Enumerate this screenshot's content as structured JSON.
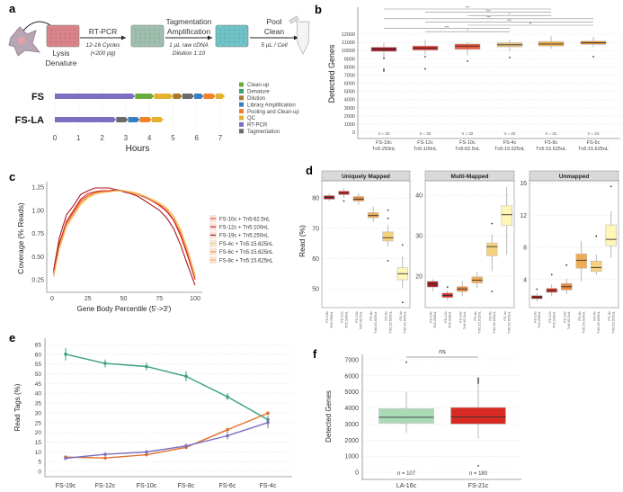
{
  "panel_labels": [
    "a",
    "b",
    "c",
    "d",
    "e",
    "f"
  ],
  "chart_data": [
    {
      "panel": "a",
      "type": "bar",
      "workflow": {
        "steps": [
          {
            "label": [
              "Lysis",
              "Denature"
            ],
            "color": "#d9838a"
          },
          {
            "label": [],
            "color": "#9fbfae"
          },
          {
            "label": [],
            "color": "#6fc3c6"
          }
        ],
        "arrows": [
          {
            "title": [
              "RT-PCR"
            ],
            "sub": [
              "12-16 Cycles",
              "(<200 pg)"
            ]
          },
          {
            "title": [
              "Tagmentation",
              "Amplification"
            ],
            "sub": [
              "1 µL raw cDNA",
              "Dilution 1:10"
            ]
          },
          {
            "title": [
              "Pool",
              "Clean"
            ],
            "sub": [
              "5 µL / Cell"
            ]
          }
        ]
      },
      "xlabel": "Hours",
      "xlim": [
        0,
        7
      ],
      "xticks": [
        "0",
        "1",
        "2",
        "3",
        "4",
        "5",
        "6",
        "7"
      ],
      "categories": [
        "FS",
        "FS-LA"
      ],
      "legend": [
        {
          "name": "Clean-up",
          "color": "#6aaa3a"
        },
        {
          "name": "Denature",
          "color": "#3aa07a"
        },
        {
          "name": "Dilution",
          "color": "#a67c2a"
        },
        {
          "name": "Library Amplification",
          "color": "#3a7fc0"
        },
        {
          "name": "Pooling and Clean-up",
          "color": "#f0822a"
        },
        {
          "name": "QC",
          "color": "#e3b330"
        },
        {
          "name": "RT-PCR",
          "color": "#7b6fc0"
        },
        {
          "name": "Tagmentation",
          "color": "#6a6a6a"
        }
      ],
      "legend_position": "right",
      "segments": {
        "FS": [
          [
            "RT-PCR",
            0,
            3.4
          ],
          [
            "Clean-up",
            3.4,
            4.2
          ],
          [
            "QC",
            4.2,
            5.0
          ],
          [
            "Dilution",
            5.0,
            5.4
          ],
          [
            "Tagmentation",
            5.4,
            5.9
          ],
          [
            "Library Amplification",
            5.9,
            6.3
          ],
          [
            "Pooling and Clean-up",
            6.3,
            6.8
          ],
          [
            "QC",
            6.8,
            7.2
          ]
        ],
        "FS-LA": [
          [
            "RT-PCR",
            0,
            2.6
          ],
          [
            "Tagmentation",
            2.6,
            3.1
          ],
          [
            "Library Amplification",
            3.1,
            3.6
          ],
          [
            "Pooling and Clean-up",
            3.6,
            4.1
          ],
          [
            "QC",
            4.1,
            4.6
          ]
        ]
      }
    },
    {
      "panel": "b",
      "type": "box",
      "ylabel": "Detected Genes",
      "ylim": [
        0,
        12000
      ],
      "yticks": [
        "0",
        "1000",
        "2000",
        "3000",
        "4000",
        "5000",
        "6000",
        "7000",
        "8000",
        "9000",
        "10000",
        "11000",
        "12000"
      ],
      "categories": [
        [
          "FS-19c",
          "Tn5:250nL"
        ],
        [
          "FS-12c",
          "Tn5:100nL"
        ],
        [
          "FS-10c",
          "Tn5:62.5nL"
        ],
        [
          "FS-4c",
          "Tn5:15.625nL"
        ],
        [
          "FS-8c",
          "Tn5:15.625nL"
        ],
        [
          "FS-6c",
          "Tn5:15.625nL"
        ]
      ],
      "n_labels": [
        "n = 32",
        "n = 32",
        "n = 32",
        "n = 32",
        "n = 31",
        "n = 24"
      ],
      "colors": [
        "#a8191f",
        "#d52a22",
        "#e8553a",
        "#e8c47a",
        "#f0b04d",
        "#e8903a"
      ],
      "boxes": [
        {
          "q1": 9900,
          "median": 10150,
          "q3": 10400,
          "lo": 9100,
          "hi": 10900,
          "outliers": [
            9050,
            7700,
            7500
          ]
        },
        {
          "q1": 10050,
          "median": 10300,
          "q3": 10550,
          "lo": 9500,
          "hi": 11300,
          "outliers": [
            9250,
            7750
          ]
        },
        {
          "q1": 10150,
          "median": 10550,
          "q3": 10800,
          "lo": 9400,
          "hi": 11000,
          "outliers": [
            8700
          ]
        },
        {
          "q1": 10450,
          "median": 10700,
          "q3": 10950,
          "lo": 9900,
          "hi": 11300,
          "outliers": [
            9150
          ]
        },
        {
          "q1": 10550,
          "median": 10800,
          "q3": 11100,
          "lo": 10200,
          "hi": 11800,
          "outliers": []
        },
        {
          "q1": 10750,
          "median": 10950,
          "q3": 11150,
          "lo": 10400,
          "hi": 11700,
          "outliers": [
            9250
          ]
        }
      ],
      "significance": [
        {
          "from": 0,
          "to": 4,
          "label": "***"
        },
        {
          "from": 1,
          "to": 4,
          "label": "***"
        },
        {
          "from": 2,
          "to": 4,
          "label": "*"
        },
        {
          "from": 0,
          "to": 5,
          "label": "***"
        },
        {
          "from": 1,
          "to": 5,
          "label": "***"
        },
        {
          "from": 2,
          "to": 5,
          "label": "**"
        },
        {
          "from": 0,
          "to": 3,
          "label": "***"
        },
        {
          "from": 1,
          "to": 3,
          "label": "*"
        }
      ],
      "grid": true
    },
    {
      "panel": "c",
      "type": "line",
      "xlabel": "Gene Body Percentile (5'->3')",
      "ylabel": "Coverage (% Reads)",
      "xlim": [
        0,
        100
      ],
      "ylim": [
        0.2,
        1.27
      ],
      "xticks": [
        "0",
        "25",
        "50",
        "75",
        "100"
      ],
      "yticks": [
        "0.25",
        "0.50",
        "0.75",
        "1.00",
        "1.25"
      ],
      "legend_position": "right",
      "series": [
        {
          "name": "FS-10c + Tn5:62.5nL",
          "color": "#e8553a",
          "x": [
            1,
            5,
            10,
            15,
            20,
            25,
            30,
            35,
            40,
            45,
            50,
            55,
            60,
            65,
            70,
            75,
            80,
            85,
            90,
            95,
            100
          ],
          "values": [
            0.32,
            0.62,
            0.86,
            0.98,
            1.1,
            1.16,
            1.19,
            1.2,
            1.21,
            1.22,
            1.21,
            1.19,
            1.17,
            1.14,
            1.1,
            1.06,
            1.0,
            0.9,
            0.74,
            0.52,
            0.26
          ]
        },
        {
          "name": "FS-12c + Tn5:100nL",
          "color": "#d52a22",
          "x": [
            1,
            5,
            10,
            15,
            20,
            25,
            30,
            35,
            40,
            45,
            50,
            55,
            60,
            65,
            70,
            75,
            80,
            85,
            90,
            95,
            100
          ],
          "values": [
            0.33,
            0.64,
            0.88,
            1.0,
            1.12,
            1.18,
            1.2,
            1.21,
            1.21,
            1.22,
            1.21,
            1.19,
            1.17,
            1.14,
            1.1,
            1.05,
            0.99,
            0.89,
            0.72,
            0.5,
            0.25
          ]
        },
        {
          "name": "FS-19c + Tn5:250nL",
          "color": "#a8191f",
          "x": [
            1,
            5,
            10,
            15,
            20,
            25,
            30,
            35,
            40,
            45,
            50,
            55,
            60,
            65,
            70,
            75,
            80,
            85,
            90,
            95,
            100
          ],
          "values": [
            0.35,
            0.7,
            0.95,
            1.05,
            1.17,
            1.21,
            1.24,
            1.24,
            1.24,
            1.22,
            1.2,
            1.18,
            1.15,
            1.1,
            1.05,
            1.0,
            0.92,
            0.8,
            0.62,
            0.4,
            0.19
          ]
        },
        {
          "name": "FS-4c + Tn5:15.625nL",
          "color": "#f6d77a",
          "x": [
            1,
            5,
            10,
            15,
            20,
            25,
            30,
            35,
            40,
            45,
            50,
            55,
            60,
            65,
            70,
            75,
            80,
            85,
            90,
            95,
            100
          ],
          "values": [
            0.28,
            0.58,
            0.82,
            0.94,
            1.06,
            1.13,
            1.17,
            1.19,
            1.2,
            1.21,
            1.21,
            1.2,
            1.18,
            1.15,
            1.12,
            1.08,
            1.03,
            0.94,
            0.79,
            0.57,
            0.3
          ]
        },
        {
          "name": "FS-6c + Tn5:15.625nL",
          "color": "#f0a04a",
          "x": [
            1,
            5,
            10,
            15,
            20,
            25,
            30,
            35,
            40,
            45,
            50,
            55,
            60,
            65,
            70,
            75,
            80,
            85,
            90,
            95,
            100
          ],
          "values": [
            0.3,
            0.6,
            0.84,
            0.96,
            1.08,
            1.15,
            1.18,
            1.2,
            1.2,
            1.21,
            1.21,
            1.19,
            1.17,
            1.15,
            1.11,
            1.07,
            1.02,
            0.93,
            0.77,
            0.55,
            0.28
          ]
        },
        {
          "name": "FS-8c + Tn5:15.625nL",
          "color": "#f5b860",
          "x": [
            1,
            5,
            10,
            15,
            20,
            25,
            30,
            35,
            40,
            45,
            50,
            55,
            60,
            65,
            70,
            75,
            80,
            85,
            90,
            95,
            100
          ],
          "values": [
            0.29,
            0.59,
            0.83,
            0.95,
            1.07,
            1.14,
            1.18,
            1.19,
            1.2,
            1.21,
            1.21,
            1.2,
            1.18,
            1.15,
            1.11,
            1.07,
            1.02,
            0.93,
            0.78,
            0.56,
            0.29
          ]
        }
      ]
    },
    {
      "panel": "d",
      "type": "box",
      "ylabel": "Read (%)",
      "categories": [
        [
          "FS-19c",
          "Tn5:250nL"
        ],
        [
          "FS-12c",
          "Tn5:100nL"
        ],
        [
          "FS-10c",
          "Tn5:62.5nL"
        ],
        [
          "FS-8c",
          "Tn5:15.625nL"
        ],
        [
          "FS-6c",
          "Tn5:15.625nL"
        ],
        [
          "FS-4c",
          "Tn5:15.625nL"
        ]
      ],
      "colors": [
        "#a8191f",
        "#d52a22",
        "#eb8a3c",
        "#f0ac52",
        "#f7d27e",
        "#fff6b8"
      ],
      "facets": [
        {
          "title": "Uniquely Mapped",
          "ylim": [
            43.8,
            85.7
          ],
          "yticks": [
            50,
            60,
            70,
            80
          ],
          "boxes": [
            {
              "q1": 79.6,
              "median": 80.2,
              "q3": 80.8,
              "lo": 79,
              "hi": 81.5,
              "outliers": []
            },
            {
              "q1": 81.1,
              "median": 81.7,
              "q3": 82.3,
              "lo": 80,
              "hi": 83.2,
              "outliers": [
                79
              ]
            },
            {
              "q1": 79,
              "median": 79.6,
              "q3": 80.5,
              "lo": 77.8,
              "hi": 81.5,
              "outliers": []
            },
            {
              "q1": 73.5,
              "median": 74.2,
              "q3": 75.2,
              "lo": 72,
              "hi": 77.2,
              "outliers": []
            },
            {
              "q1": 65.8,
              "median": 66.9,
              "q3": 68.8,
              "lo": 64,
              "hi": 71,
              "outliers": [
                76,
                73.3,
                59.3
              ]
            },
            {
              "q1": 53,
              "median": 55,
              "q3": 57,
              "lo": 50.2,
              "hi": 60.8,
              "outliers": [
                64.5,
                45.5
              ]
            }
          ]
        },
        {
          "title": "Multi-Mapped",
          "ylim": [
            12.2,
            43.6
          ],
          "yticks": [
            20,
            30,
            40
          ],
          "boxes": [
            {
              "q1": 17.3,
              "median": 18,
              "q3": 18.7,
              "lo": 16.2,
              "hi": 19.2,
              "outliers": []
            },
            {
              "q1": 14.7,
              "median": 15.2,
              "q3": 15.8,
              "lo": 14,
              "hi": 16.5,
              "outliers": [
                17.3
              ]
            },
            {
              "q1": 16.2,
              "median": 16.8,
              "q3": 17.4,
              "lo": 15,
              "hi": 18.8,
              "outliers": []
            },
            {
              "q1": 18.3,
              "median": 19,
              "q3": 19.8,
              "lo": 17,
              "hi": 21,
              "outliers": []
            },
            {
              "q1": 25,
              "median": 27.3,
              "q3": 28.2,
              "lo": 21.2,
              "hi": 30.3,
              "outliers": [
                33,
                16.2
              ]
            },
            {
              "q1": 32.5,
              "median": 35.2,
              "q3": 37.4,
              "lo": 25.3,
              "hi": 42,
              "outliers": []
            }
          ]
        },
        {
          "title": "Unmapped",
          "ylim": [
            0.5,
            16.3
          ],
          "yticks": [
            4,
            8,
            12,
            16
          ],
          "boxes": [
            {
              "q1": 1.6,
              "median": 1.8,
              "q3": 2.0,
              "lo": 1.3,
              "hi": 2.3,
              "outliers": [
                2.8
              ]
            },
            {
              "q1": 2.4,
              "median": 2.6,
              "q3": 2.9,
              "lo": 1.9,
              "hi": 3.4,
              "outliers": [
                4.6
              ]
            },
            {
              "q1": 2.7,
              "median": 3.1,
              "q3": 3.5,
              "lo": 2.2,
              "hi": 4.1,
              "outliers": [
                5.8
              ]
            },
            {
              "q1": 5.4,
              "median": 6.4,
              "q3": 7.2,
              "lo": 3.8,
              "hi": 8.8,
              "outliers": []
            },
            {
              "q1": 5,
              "median": 5.5,
              "q3": 6.3,
              "lo": 4.6,
              "hi": 7.1,
              "outliers": [
                9.4
              ]
            },
            {
              "q1": 8.2,
              "median": 9,
              "q3": 10.8,
              "lo": 6.7,
              "hi": 12.5,
              "outliers": [
                15.6
              ]
            }
          ]
        }
      ]
    },
    {
      "panel": "e",
      "type": "line",
      "ylabel": "Read Tags (%)",
      "ylim": [
        0,
        65
      ],
      "yticks": [
        "0",
        "5",
        "10",
        "15",
        "20",
        "25",
        "30",
        "35",
        "40",
        "45",
        "50",
        "55",
        "60",
        "65"
      ],
      "categories": [
        "FS-19c",
        "FS-12c",
        "FS-10c",
        "FS-8c",
        "FS-6c",
        "FS-4c"
      ],
      "grid": true,
      "series": [
        {
          "color": "#3aa07a",
          "values": [
            60,
            55.3,
            53.7,
            48.7,
            38.2,
            26.5
          ],
          "error": [
            3.2,
            2,
            2,
            2.5,
            1.8,
            2
          ]
        },
        {
          "color": "#e0702a",
          "values": [
            7.3,
            6.8,
            8.5,
            12.3,
            21.3,
            29.8
          ],
          "error": [
            0.8,
            0.6,
            0.8,
            1,
            1.2,
            1
          ]
        },
        {
          "color": "#7b6fc0",
          "values": [
            6.7,
            8.7,
            9.9,
            13,
            18.2,
            25
          ],
          "error": [
            0.8,
            1,
            1,
            1.2,
            1.8,
            3
          ]
        }
      ]
    },
    {
      "panel": "f",
      "type": "box",
      "ylabel": "Detected Genes",
      "ylim": [
        0,
        7000
      ],
      "yticks": [
        "0",
        "1000",
        "2000",
        "3000",
        "4000",
        "5000",
        "6000",
        "7000"
      ],
      "categories": [
        "LA-16c",
        "FS-21c"
      ],
      "n_labels": [
        "n = 107",
        "n = 180"
      ],
      "colors": [
        "#a8dbb5",
        "#d62a22"
      ],
      "boxes": [
        {
          "q1": 3050,
          "median": 3420,
          "q3": 3950,
          "lo": 2450,
          "hi": 5000,
          "outliers": [
            6850
          ]
        },
        {
          "q1": 3000,
          "median": 3450,
          "q3": 4030,
          "lo": 2100,
          "hi": 5500,
          "outliers": [
            5850,
            5750,
            5650,
            5550,
            400
          ]
        }
      ],
      "significance": [
        {
          "from": 0,
          "to": 1,
          "label": "ns"
        }
      ],
      "grid": true
    }
  ]
}
